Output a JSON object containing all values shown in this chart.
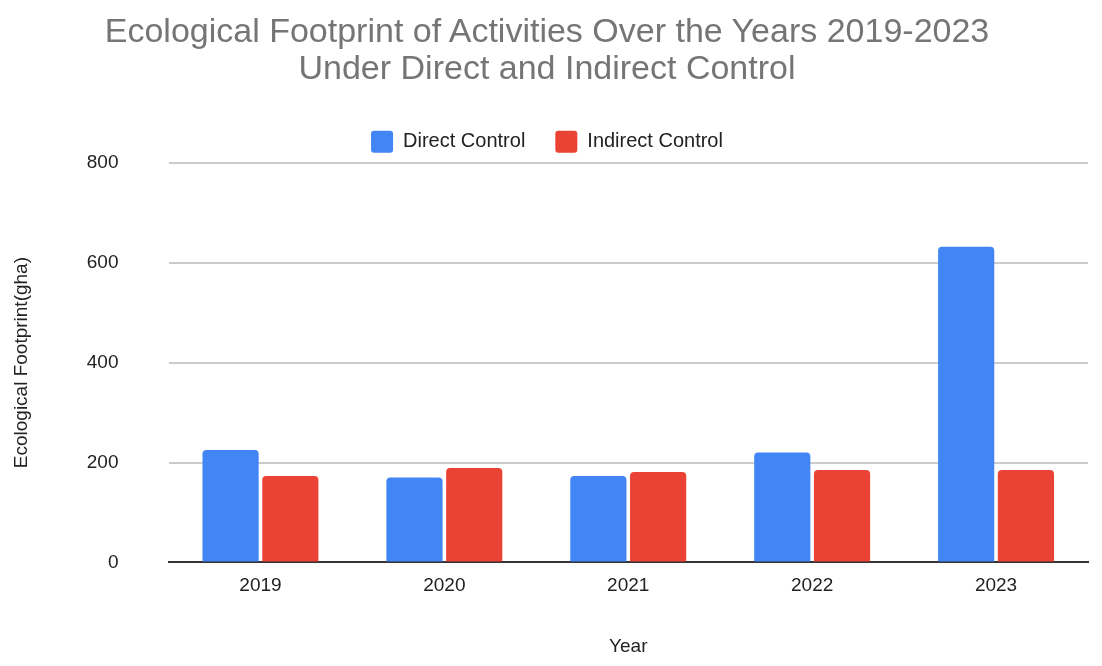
{
  "chart_data": {
    "type": "bar",
    "title": "Ecological Footprint of Activities Over the Years 2019-2023\nUnder Direct and Indirect Control",
    "xlabel": "Year",
    "ylabel": "Ecological Footprint(gha)",
    "categories": [
      "2019",
      "2020",
      "2021",
      "2022",
      "2023"
    ],
    "series": [
      {
        "name": "Direct Control",
        "color": "#4285f4",
        "values": [
          225,
          170,
          173,
          220,
          632
        ]
      },
      {
        "name": "Indirect Control",
        "color": "#ea4335",
        "values": [
          173,
          189,
          181,
          185,
          185
        ]
      }
    ],
    "ylim": [
      0,
      800
    ],
    "yticks": [
      0,
      200,
      400,
      600,
      800
    ],
    "grid": "y",
    "legend": "top"
  }
}
